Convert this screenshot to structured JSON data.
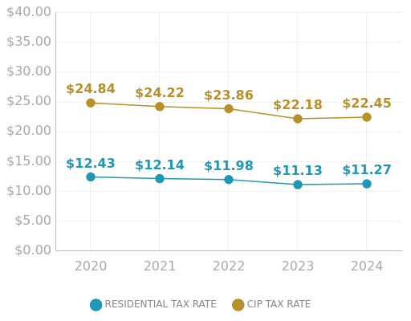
{
  "chart_data": {
    "type": "line",
    "categories": [
      "2020",
      "2021",
      "2022",
      "2023",
      "2024"
    ],
    "series": [
      {
        "name": "RESIDENTIAL TAX RATE",
        "color": "#1f97b5",
        "values": [
          12.43,
          12.14,
          11.98,
          11.13,
          11.27
        ],
        "value_labels": [
          "$12.43",
          "$12.14",
          "$11.98",
          "$11.13",
          "$11.27"
        ],
        "marker": "circle",
        "line_style": "solid"
      },
      {
        "name": "CIP TAX RATE",
        "color": "#b8902a",
        "values": [
          24.84,
          24.22,
          23.86,
          22.18,
          22.45
        ],
        "value_labels": [
          "$24.84",
          "$24.22",
          "$23.86",
          "$22.18",
          "$22.45"
        ],
        "marker": "circle",
        "line_style": "solid"
      }
    ],
    "ylim": [
      0,
      40
    ],
    "yticks": [
      {
        "value": 0,
        "label": "$0.00"
      },
      {
        "value": 5,
        "label": "$5.00"
      },
      {
        "value": 10,
        "label": "$10.00"
      },
      {
        "value": 15,
        "label": "$15.00"
      },
      {
        "value": 20,
        "label": "$20.00"
      },
      {
        "value": 25,
        "label": "$25.00"
      },
      {
        "value": 30,
        "label": "$30.00"
      },
      {
        "value": 35,
        "label": "$35.00"
      },
      {
        "value": 40,
        "label": "$40.00"
      }
    ],
    "grid": true,
    "legend": "bottom",
    "data_labels": true
  }
}
